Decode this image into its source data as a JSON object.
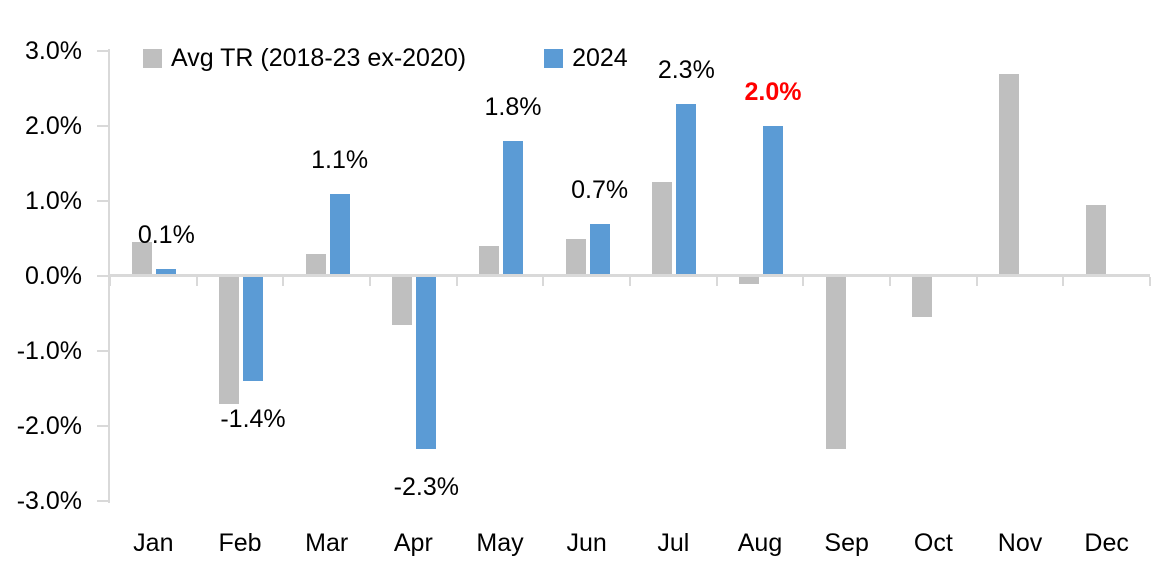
{
  "chart_data": {
    "type": "bar",
    "title": "",
    "xlabel": "",
    "ylabel": "",
    "categories": [
      "Jan",
      "Feb",
      "Mar",
      "Apr",
      "May",
      "Jun",
      "Jul",
      "Aug",
      "Sep",
      "Oct",
      "Nov",
      "Dec"
    ],
    "series": [
      {
        "name": "Avg TR (2018-23 ex-2020)",
        "color": "#BFBFBF",
        "values": [
          0.45,
          -1.7,
          0.3,
          -0.65,
          0.4,
          0.5,
          1.25,
          -0.1,
          -2.3,
          -0.55,
          2.7,
          0.95
        ]
      },
      {
        "name": "2024",
        "color": "#5B9BD5",
        "values": [
          0.1,
          -1.4,
          1.1,
          -2.3,
          1.8,
          0.7,
          2.3,
          2.0,
          null,
          null,
          null,
          null
        ]
      }
    ],
    "data_labels": [
      {
        "text": "0.1%",
        "color": "#000000",
        "bold": false
      },
      {
        "text": "-1.4%",
        "color": "#000000",
        "bold": false
      },
      {
        "text": "1.1%",
        "color": "#000000",
        "bold": false
      },
      {
        "text": "-2.3%",
        "color": "#000000",
        "bold": false
      },
      {
        "text": "1.8%",
        "color": "#000000",
        "bold": false
      },
      {
        "text": "0.7%",
        "color": "#000000",
        "bold": false
      },
      {
        "text": "2.3%",
        "color": "#000000",
        "bold": false
      },
      {
        "text": "2.0%",
        "color": "#FF0000",
        "bold": true
      },
      null,
      null,
      null,
      null
    ],
    "y_axis": {
      "min": -3,
      "max": 3,
      "tick_step": 1,
      "tick_labels": [
        "3.0%",
        "2.0%",
        "1.0%",
        "0.0%",
        "-1.0%",
        "-2.0%",
        "-3.0%"
      ],
      "format": "percent"
    },
    "ylim": [
      -3,
      3
    ],
    "grid": false,
    "legend_position": "top",
    "colors": {
      "axis": "#D9D9D9",
      "text": "#000000",
      "highlight": "#FF0000",
      "background": "#FFFFFF"
    }
  }
}
